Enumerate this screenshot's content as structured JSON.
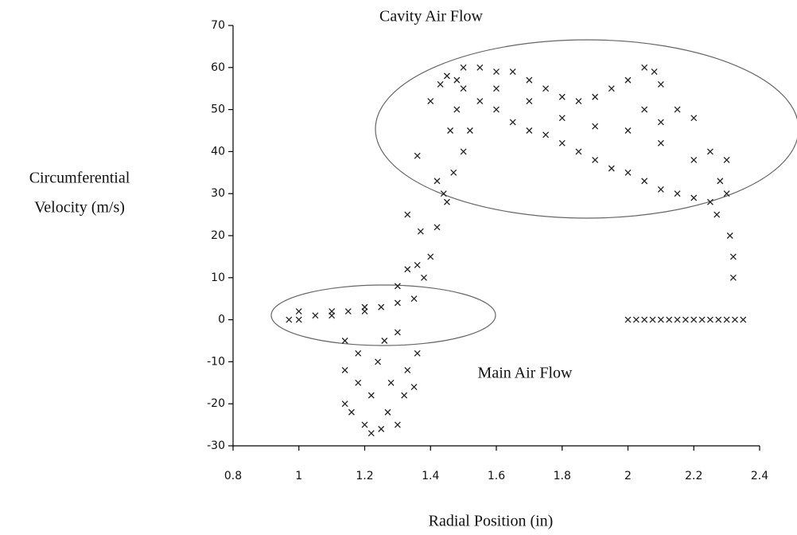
{
  "chart_data": {
    "type": "scatter",
    "annotations": [
      "Cavity Air Flow",
      "Main Air Flow"
    ],
    "x_label": "Radial Position (in)",
    "y_label": [
      "Circumferential",
      "Velocity (m/s)"
    ],
    "color": "#222222",
    "xlim": [
      0.8,
      2.4
    ],
    "xticks": [
      0.8,
      1,
      1.2,
      1.4,
      1.6,
      1.8,
      2,
      2.2,
      2.4
    ],
    "ylim": [
      -30,
      70
    ],
    "yticks": [
      -30,
      -20,
      -10,
      0,
      10,
      20,
      30,
      40,
      50,
      60,
      70
    ],
    "x": [
      0.97,
      1.0,
      1.05,
      1.1,
      1.15,
      1.2,
      1.25,
      1.3,
      1.35,
      1.0,
      1.1,
      1.2,
      1.14,
      1.14,
      1.14,
      1.16,
      1.18,
      1.2,
      1.22,
      1.22,
      1.24,
      1.25,
      1.27,
      1.28,
      1.3,
      1.32,
      1.33,
      1.35,
      1.36,
      1.18,
      1.26,
      1.3,
      1.3,
      1.33,
      1.36,
      1.38,
      1.4,
      1.42,
      1.45,
      1.47,
      1.5,
      1.52,
      1.44,
      1.48,
      1.5,
      1.45,
      1.43,
      1.37,
      1.33,
      1.42,
      1.36,
      1.46,
      1.4,
      1.48,
      1.5,
      1.55,
      1.6,
      1.65,
      1.7,
      1.75,
      1.8,
      1.85,
      1.9,
      1.95,
      2.0,
      2.05,
      2.08,
      2.1,
      2.15,
      2.2,
      2.25,
      2.28,
      1.6,
      1.65,
      1.7,
      1.75,
      1.8,
      1.85,
      1.9,
      1.95,
      2.0,
      2.05,
      2.1,
      2.15,
      2.2,
      2.25,
      2.27,
      1.6,
      1.7,
      1.8,
      1.9,
      2.0,
      2.1,
      2.2,
      2.05,
      2.1,
      1.55,
      2.3,
      2.3,
      2.31,
      2.32,
      2.32,
      2.0,
      2.025,
      2.05,
      2.075,
      2.1,
      2.125,
      2.15,
      2.175,
      2.2,
      2.225,
      2.25,
      2.275,
      2.3,
      2.325,
      2.35
    ],
    "values": [
      0,
      0,
      1,
      1,
      2,
      2,
      3,
      4,
      5,
      2,
      2,
      3,
      -5,
      -12,
      -20,
      -22,
      -15,
      -25,
      -27,
      -18,
      -10,
      -26,
      -22,
      -15,
      -25,
      -18,
      -12,
      -16,
      -8,
      -8,
      -5,
      -3,
      8,
      12,
      13,
      10,
      15,
      22,
      28,
      35,
      40,
      45,
      30,
      50,
      55,
      58,
      56,
      21,
      25,
      33,
      39,
      45,
      52,
      57,
      60,
      60,
      59,
      59,
      57,
      55,
      53,
      52,
      53,
      55,
      57,
      60,
      59,
      56,
      50,
      48,
      40,
      33,
      50,
      47,
      45,
      44,
      42,
      40,
      38,
      36,
      35,
      33,
      31,
      30,
      29,
      28,
      25,
      55,
      52,
      48,
      46,
      45,
      42,
      38,
      50,
      47,
      52,
      38,
      30,
      20,
      15,
      10,
      0,
      0,
      0,
      0,
      0,
      0,
      0,
      0,
      0,
      0,
      0,
      0,
      0,
      0,
      0
    ]
  }
}
